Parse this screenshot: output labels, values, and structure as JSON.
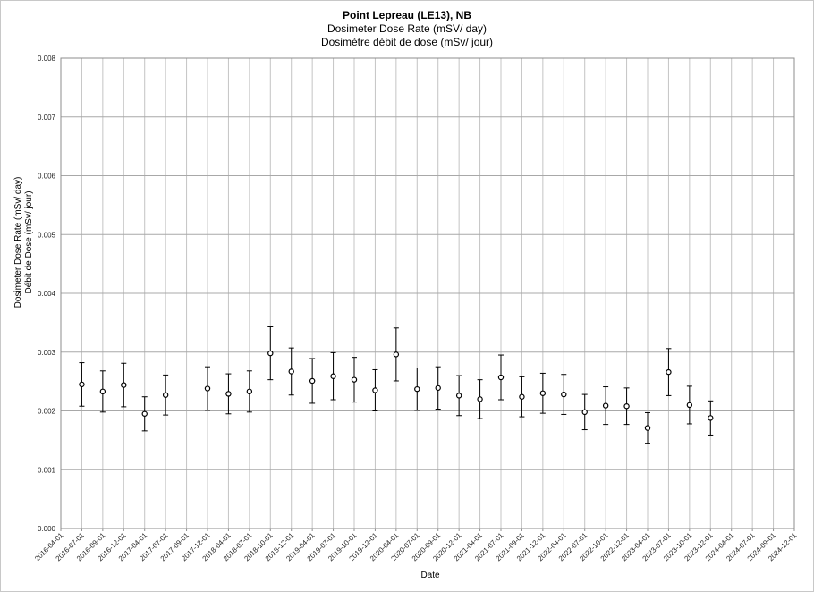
{
  "chart_data": {
    "type": "scatter",
    "title": "Point Lepreau (LE13), NB",
    "subtitle_lines": [
      "Dosimeter Dose Rate (mSV/ day)",
      "Dosimètre débit de dose (mSv/ jour)"
    ],
    "xlabel": "Date",
    "ylabel_lines": [
      "Dosimeter Dose Rate (mSv/ day)",
      "Débit de Dose (mSv/ jour)"
    ],
    "ylim": [
      0,
      0.008
    ],
    "y_ticks": [
      "0.000",
      "0.001",
      "0.002",
      "0.003",
      "0.004",
      "0.005",
      "0.006",
      "0.007",
      "0.008"
    ],
    "x_ticks": [
      "2016-04-01",
      "2016-07-01",
      "2016-09-01",
      "2016-12-01",
      "2017-04-01",
      "2017-07-01",
      "2017-09-01",
      "2017-12-01",
      "2018-04-01",
      "2018-07-01",
      "2018-10-01",
      "2018-12-01",
      "2019-04-01",
      "2019-07-01",
      "2019-10-01",
      "2019-12-01",
      "2020-04-01",
      "2020-07-01",
      "2020-09-01",
      "2020-12-01",
      "2021-04-01",
      "2021-07-01",
      "2021-09-01",
      "2021-12-01",
      "2022-04-01",
      "2022-07-01",
      "2022-10-01",
      "2022-12-01",
      "2023-04-01",
      "2023-07-01",
      "2023-10-01",
      "2023-12-01",
      "2024-04-01",
      "2024-07-01",
      "2024-09-01",
      "2024-12-01"
    ],
    "grid": true,
    "legend": "none",
    "series": [
      {
        "x": [
          "2016-07-01",
          "2016-09-01",
          "2016-12-01",
          "2017-04-01",
          "2017-07-01",
          "2017-12-01",
          "2018-04-01",
          "2018-07-01",
          "2018-10-01",
          "2018-12-01",
          "2019-04-01",
          "2019-07-01",
          "2019-10-01",
          "2019-12-01",
          "2020-04-01",
          "2020-07-01",
          "2020-09-01",
          "2020-12-01",
          "2021-04-01",
          "2021-07-01",
          "2021-09-01",
          "2021-12-01",
          "2022-04-01",
          "2022-07-01",
          "2022-10-01",
          "2022-12-01",
          "2023-04-01",
          "2023-07-01",
          "2023-10-01",
          "2023-12-01"
        ],
        "y": [
          0.00245,
          0.00233,
          0.00244,
          0.00195,
          0.00227,
          0.00238,
          0.00229,
          0.00233,
          0.00298,
          0.00267,
          0.00251,
          0.00259,
          0.00253,
          0.00235,
          0.00296,
          0.00237,
          0.00239,
          0.00226,
          0.0022,
          0.00257,
          0.00224,
          0.0023,
          0.00228,
          0.00198,
          0.00209,
          0.00208,
          0.00171,
          0.00266,
          0.0021,
          0.00188
        ],
        "error": [
          0.00037,
          0.00035,
          0.00037,
          0.00029,
          0.00034,
          0.00037,
          0.00034,
          0.00035,
          0.00045,
          0.0004,
          0.00038,
          0.0004,
          0.00038,
          0.00035,
          0.00045,
          0.00036,
          0.00036,
          0.00034,
          0.00033,
          0.00038,
          0.00034,
          0.00034,
          0.00034,
          0.0003,
          0.00032,
          0.00031,
          0.00026,
          0.0004,
          0.00032,
          0.00029
        ]
      }
    ]
  }
}
